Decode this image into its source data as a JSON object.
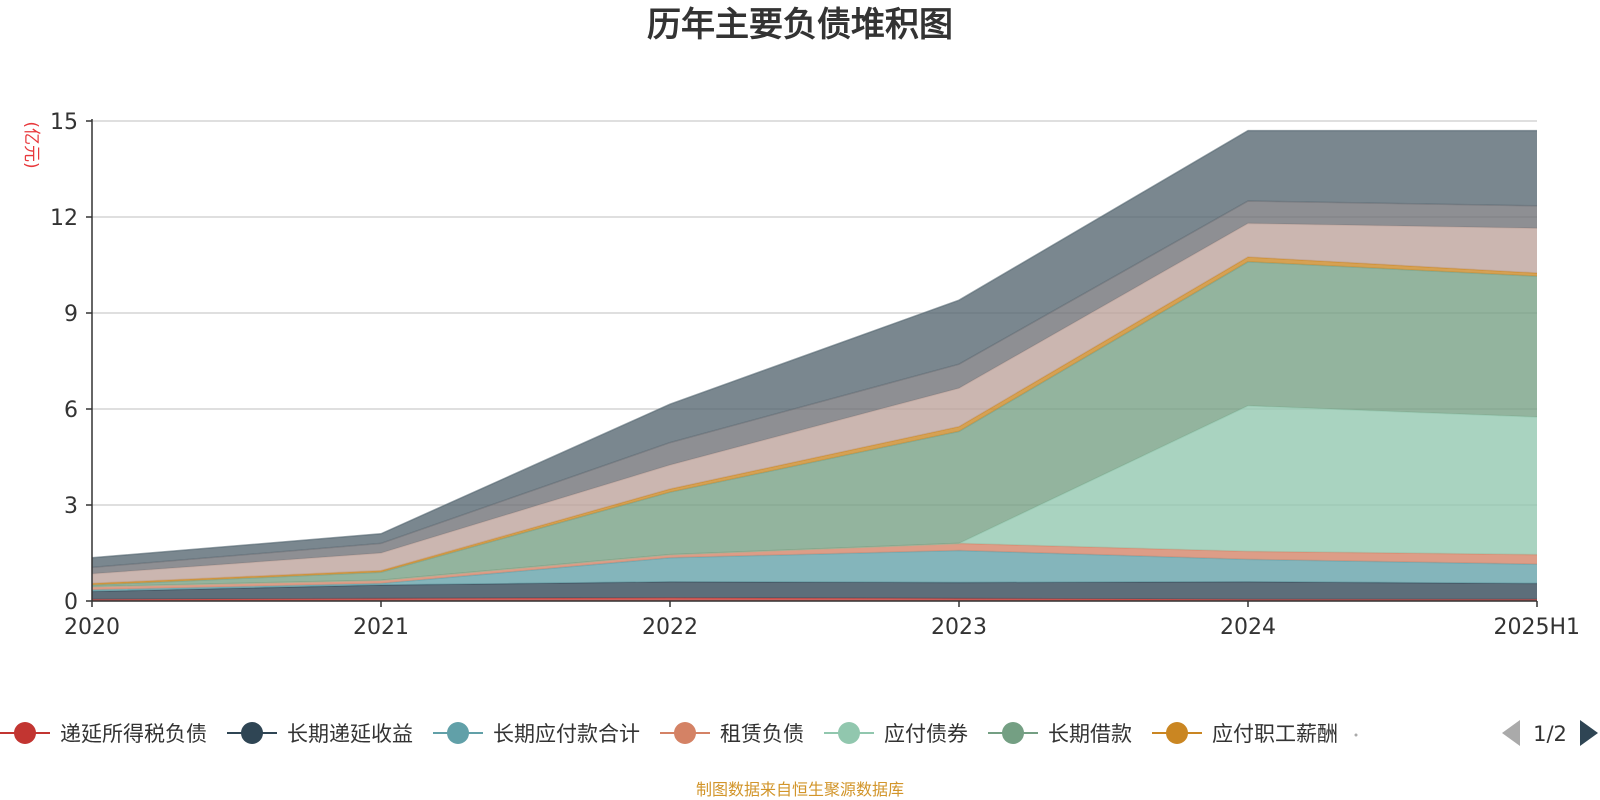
{
  "chart_data": {
    "type": "area",
    "stacked": true,
    "title": "历年主要负债堆积图",
    "unit_label": "(亿元)",
    "x": [
      "2020",
      "2021",
      "2022",
      "2023",
      "2024",
      "2025H1"
    ],
    "ylim": [
      0,
      15
    ],
    "yticks": [
      "0",
      "3",
      "6",
      "9",
      "12",
      "15"
    ],
    "grid": true,
    "series": [
      {
        "name": "递延所得税负债",
        "color": "#c23531",
        "values": [
          0.05,
          0.08,
          0.1,
          0.08,
          0.05,
          0.05
        ]
      },
      {
        "name": "长期递延收益",
        "color": "#2f4554",
        "values": [
          0.25,
          0.42,
          0.5,
          0.5,
          0.55,
          0.5
        ]
      },
      {
        "name": "长期应付款合计",
        "color": "#61a0a8",
        "values": [
          0.05,
          0.05,
          0.75,
          1.0,
          0.7,
          0.6
        ]
      },
      {
        "name": "租赁负债",
        "color": "#d48265",
        "values": [
          0.1,
          0.1,
          0.1,
          0.22,
          0.25,
          0.3
        ]
      },
      {
        "name": "应付债券",
        "color": "#91c7ae",
        "values": [
          0.0,
          0.0,
          0.0,
          0.0,
          4.55,
          4.3
        ]
      },
      {
        "name": "长期借款",
        "color": "#749f83",
        "values": [
          0.05,
          0.25,
          1.95,
          3.5,
          4.5,
          4.4
        ]
      },
      {
        "name": "应付职工薪酬",
        "color": "#ca8622",
        "values": [
          0.05,
          0.05,
          0.1,
          0.15,
          0.15,
          0.1
        ]
      },
      {
        "name": "",
        "color": "#bda29a",
        "values": [
          0.3,
          0.55,
          0.75,
          1.2,
          1.05,
          1.4
        ]
      },
      {
        "name": "",
        "color": "#6e7074",
        "values": [
          0.2,
          0.3,
          0.7,
          0.75,
          0.7,
          0.7
        ]
      },
      {
        "name": "",
        "color": "#546570",
        "values": [
          0.3,
          0.3,
          1.2,
          2.0,
          2.2,
          2.35
        ]
      }
    ]
  },
  "legend": {
    "items": [
      {
        "name": "递延所得税负债",
        "color": "#c23531"
      },
      {
        "name": "长期递延收益",
        "color": "#2f4554"
      },
      {
        "name": "长期应付款合计",
        "color": "#61a0a8"
      },
      {
        "name": "租赁负债",
        "color": "#d48265"
      },
      {
        "name": "应付债券",
        "color": "#91c7ae"
      },
      {
        "name": "长期借款",
        "color": "#749f83"
      },
      {
        "name": "应付职工薪酬",
        "color": "#ca8622"
      }
    ],
    "page": "1/2"
  },
  "source_note": "制图数据来自恒生聚源数据库"
}
